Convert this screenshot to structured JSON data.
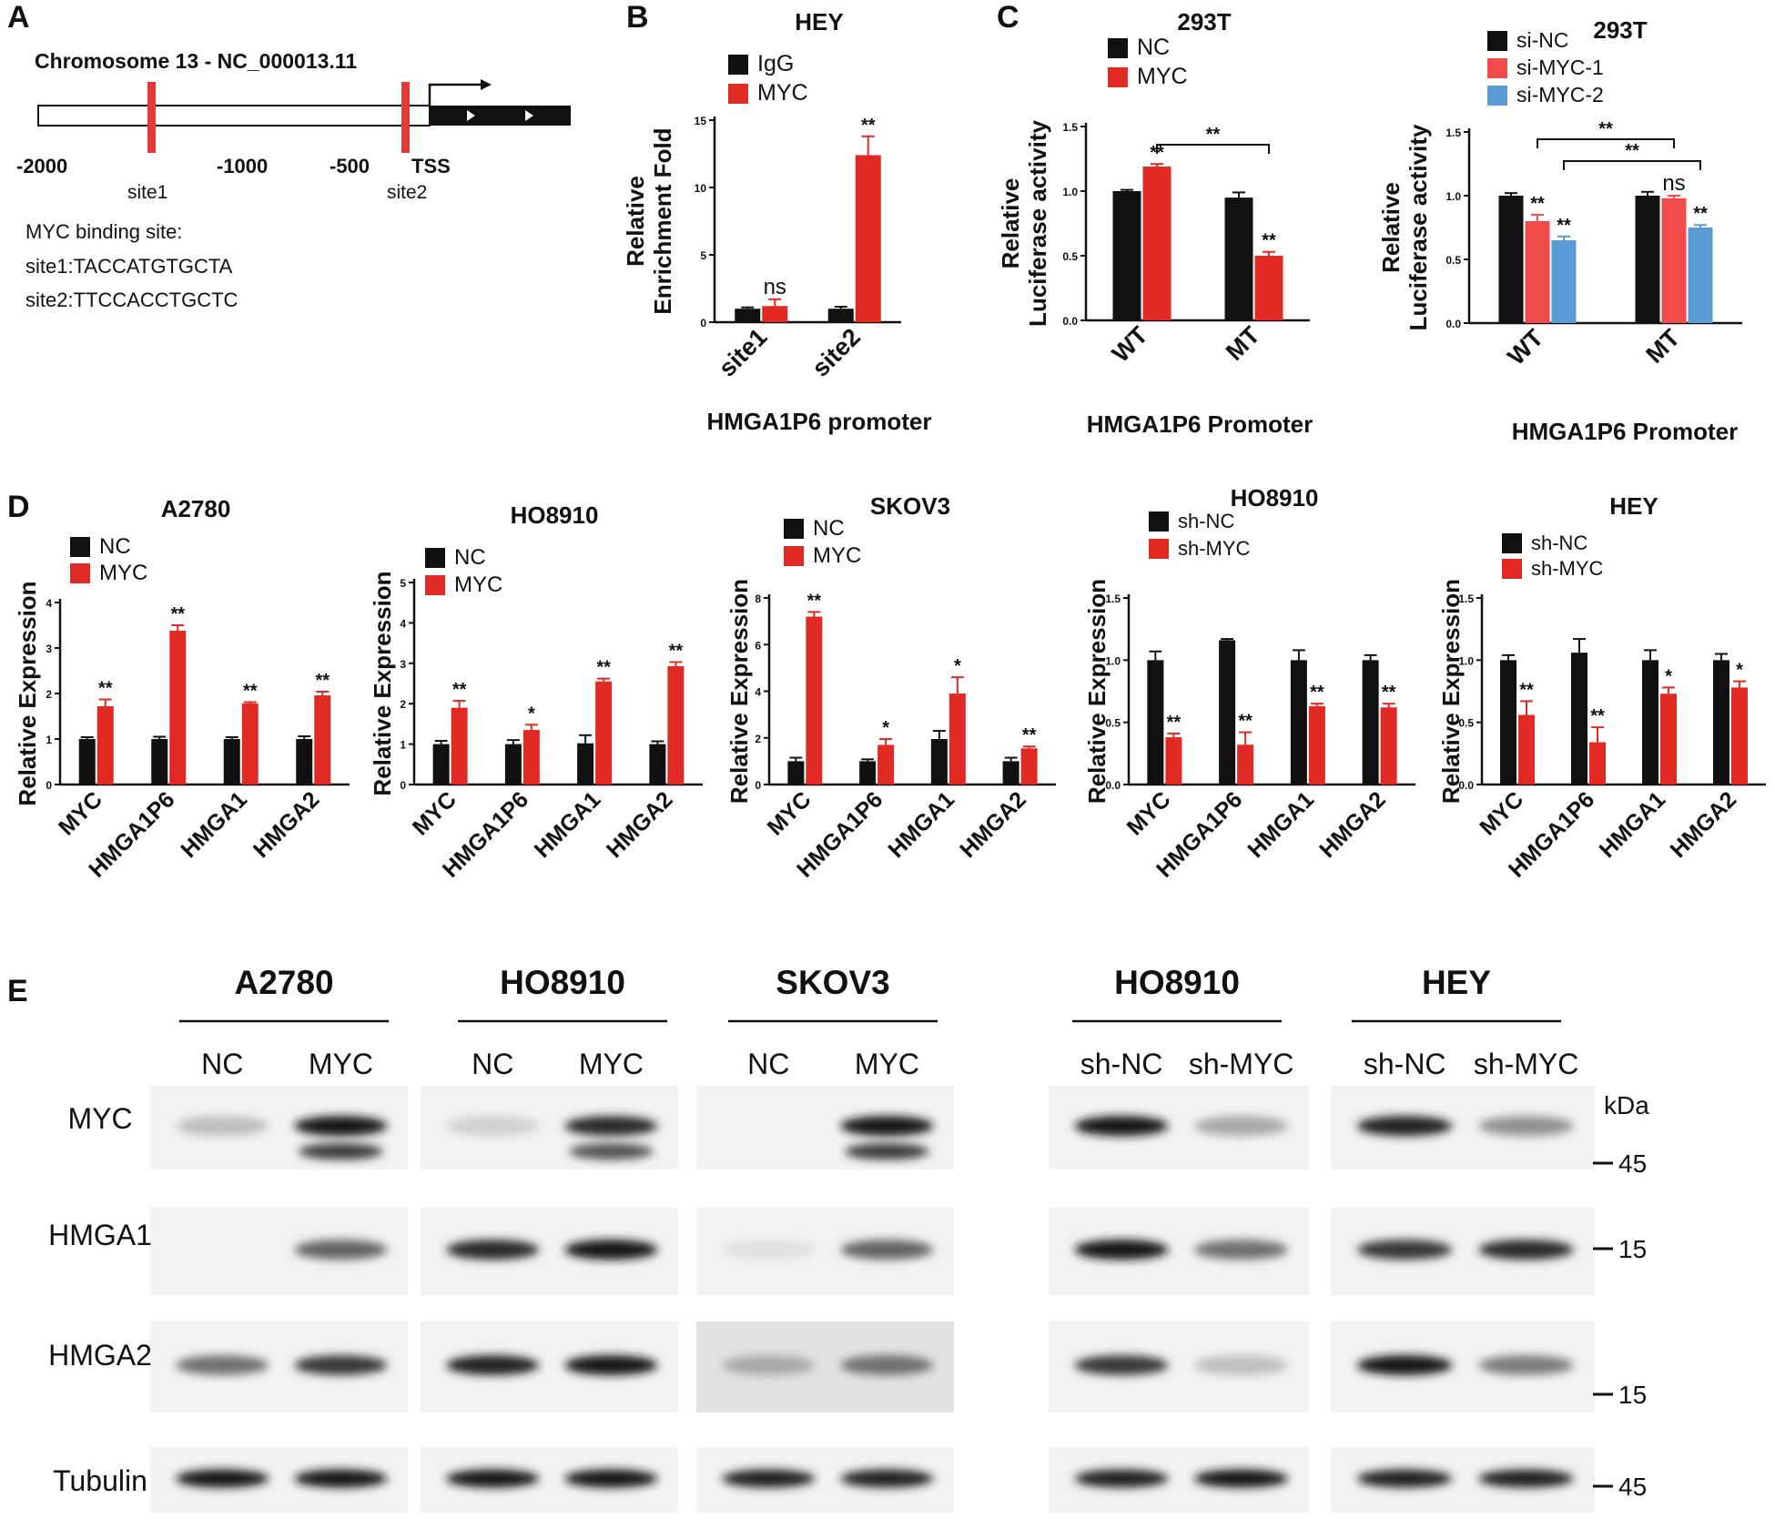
{
  "panels": {
    "A": {
      "label": "A",
      "chromosome": "Chromosome 13 - NC_000013.11",
      "positions": [
        "-2000",
        "-1000",
        "-500",
        "TSS"
      ],
      "sites": [
        "site1",
        "site2"
      ],
      "binding_title": "MYC binding site:",
      "site1_seq": "site1:TACCATGTGCTA",
      "site2_seq": "site2:TTCCACCTGCTC",
      "site_color": "#e53935"
    },
    "B": {
      "label": "B"
    },
    "C": {
      "label": "C"
    },
    "D": {
      "label": "D"
    },
    "E": {
      "label": "E"
    }
  },
  "colors": {
    "black": "#111111",
    "red": "#e22a24",
    "salmon": "#ef4c4a",
    "blue": "#5b9bd5"
  },
  "chart_data": [
    {
      "id": "B",
      "type": "bar",
      "title": "HEY",
      "ylabel": [
        "Relative",
        "Enrichment Fold"
      ],
      "xlabel": "HMGA1P6 promoter",
      "ylim": [
        0,
        15
      ],
      "yticks": [
        "0",
        "5",
        "10",
        "15"
      ],
      "categories": [
        "site1",
        "site2"
      ],
      "series": [
        {
          "name": "IgG",
          "color": "#111111",
          "values": [
            1.0,
            1.0
          ],
          "errors": [
            0.1,
            0.15
          ]
        },
        {
          "name": "MYC",
          "color": "#e22a24",
          "values": [
            1.2,
            12.4
          ],
          "errors": [
            0.5,
            1.4
          ]
        }
      ],
      "annotations": [
        [
          "",
          ""
        ],
        [
          "ns",
          "**"
        ]
      ]
    },
    {
      "id": "C1",
      "type": "bar",
      "title": "293T",
      "ylabel": [
        "Relative",
        "Luciferase activity"
      ],
      "xlabel": "HMGA1P6 Promoter",
      "ylim": [
        0,
        1.5
      ],
      "yticks": [
        "0.0",
        "0.5",
        "1.0",
        "1.5"
      ],
      "categories": [
        "WT",
        "MT"
      ],
      "series": [
        {
          "name": "NC",
          "color": "#111111",
          "values": [
            1.0,
            0.95
          ],
          "errors": [
            0.01,
            0.04
          ]
        },
        {
          "name": "MYC",
          "color": "#e22a24",
          "values": [
            1.19,
            0.5
          ],
          "errors": [
            0.02,
            0.03
          ]
        }
      ],
      "annotations": [
        [
          "",
          ""
        ],
        [
          "**",
          "**"
        ]
      ],
      "brackets": [
        {
          "text": "**",
          "from": [
            0,
            1
          ],
          "to": [
            1,
            1
          ]
        }
      ]
    },
    {
      "id": "C2",
      "type": "bar",
      "title": "293T",
      "ylabel": [
        "Relative",
        "Luciferase activity"
      ],
      "xlabel": "HMGA1P6 Promoter",
      "ylim": [
        0,
        1.5
      ],
      "yticks": [
        "0.0",
        "0.5",
        "1.0",
        "1.5"
      ],
      "categories": [
        "WT",
        "MT"
      ],
      "series": [
        {
          "name": "si-NC",
          "color": "#111111",
          "values": [
            1.0,
            1.0
          ],
          "errors": [
            0.02,
            0.03
          ]
        },
        {
          "name": "si-MYC-1",
          "color": "#ef4c4a",
          "values": [
            0.8,
            0.98
          ],
          "errors": [
            0.05,
            0.02
          ]
        },
        {
          "name": "si-MYC-2",
          "color": "#5b9bd5",
          "values": [
            0.65,
            0.75
          ],
          "errors": [
            0.03,
            0.02
          ]
        }
      ],
      "annotations": [
        [
          "",
          ""
        ],
        [
          "**",
          "ns"
        ],
        [
          "**",
          "**"
        ]
      ],
      "brackets": [
        {
          "text": "**",
          "from": [
            0,
            1
          ],
          "to": [
            1,
            1
          ]
        },
        {
          "text": "**",
          "from": [
            0,
            2
          ],
          "to": [
            1,
            2
          ]
        }
      ]
    },
    {
      "id": "D1",
      "type": "bar",
      "title": "A2780",
      "ylabel": [
        "Relative Expression"
      ],
      "ylim": [
        0,
        4
      ],
      "yticks": [
        "0",
        "1",
        "2",
        "3",
        "4"
      ],
      "categories": [
        "MYC",
        "HMGA1P6",
        "HMGA1",
        "HMGA2"
      ],
      "series": [
        {
          "name": "NC",
          "color": "#111111",
          "values": [
            1.0,
            1.0,
            1.0,
            1.0
          ],
          "errors": [
            0.04,
            0.05,
            0.04,
            0.06
          ]
        },
        {
          "name": "MYC",
          "color": "#e22a24",
          "values": [
            1.72,
            3.38,
            1.78,
            1.96
          ],
          "errors": [
            0.15,
            0.12,
            0.03,
            0.08
          ]
        }
      ],
      "annotations": [
        [
          "",
          "",
          "",
          ""
        ],
        [
          "**",
          "**",
          "**",
          "**"
        ]
      ]
    },
    {
      "id": "D2",
      "type": "bar",
      "title": "HO8910",
      "ylabel": [
        "Relative Expression"
      ],
      "ylim": [
        0,
        5
      ],
      "yticks": [
        "0",
        "1",
        "2",
        "3",
        "4",
        "5"
      ],
      "categories": [
        "MYC",
        "HMGA1P6",
        "HMGA1",
        "HMGA2"
      ],
      "series": [
        {
          "name": "NC",
          "color": "#111111",
          "values": [
            1.0,
            1.0,
            1.02,
            1.0
          ],
          "errors": [
            0.08,
            0.1,
            0.2,
            0.07
          ]
        },
        {
          "name": "MYC",
          "color": "#e22a24",
          "values": [
            1.9,
            1.35,
            2.55,
            2.93
          ],
          "errors": [
            0.17,
            0.13,
            0.07,
            0.1
          ]
        }
      ],
      "annotations": [
        [
          "",
          "",
          "",
          ""
        ],
        [
          "**",
          "*",
          "**",
          "**"
        ]
      ]
    },
    {
      "id": "D3",
      "type": "bar",
      "title": "SKOV3",
      "ylabel": [
        "Relative Expression"
      ],
      "ylim": [
        0,
        8
      ],
      "yticks": [
        "0",
        "2",
        "4",
        "6",
        "8"
      ],
      "categories": [
        "MYC",
        "HMGA1P6",
        "HMGA1",
        "HMGA2"
      ],
      "series": [
        {
          "name": "NC",
          "color": "#111111",
          "values": [
            1.0,
            1.0,
            1.95,
            1.0
          ],
          "errors": [
            0.15,
            0.08,
            0.35,
            0.15
          ]
        },
        {
          "name": "MYC",
          "color": "#e22a24",
          "values": [
            7.2,
            1.7,
            3.9,
            1.55
          ],
          "errors": [
            0.2,
            0.25,
            0.7,
            0.08
          ]
        }
      ],
      "annotations": [
        [
          "",
          "",
          "",
          ""
        ],
        [
          "**",
          "*",
          "*",
          "**"
        ]
      ]
    },
    {
      "id": "D4",
      "type": "bar",
      "title": "HO8910",
      "ylabel": [
        "Relative Expression"
      ],
      "ylim": [
        0,
        1.5
      ],
      "yticks": [
        "0.0",
        "0.5",
        "1.0",
        "1.5"
      ],
      "categories": [
        "MYC",
        "HMGA1P6",
        "HMGA1",
        "HMGA2"
      ],
      "series": [
        {
          "name": "sh-NC",
          "color": "#111111",
          "values": [
            1.0,
            1.16,
            1.0,
            1.0
          ],
          "errors": [
            0.07,
            0.01,
            0.08,
            0.04
          ]
        },
        {
          "name": "sh-MYC",
          "color": "#e22a24",
          "values": [
            0.38,
            0.32,
            0.63,
            0.62
          ],
          "errors": [
            0.03,
            0.1,
            0.02,
            0.03
          ]
        }
      ],
      "annotations": [
        [
          "",
          "",
          "",
          ""
        ],
        [
          "**",
          "**",
          "**",
          "**"
        ]
      ]
    },
    {
      "id": "D5",
      "type": "bar",
      "title": "HEY",
      "ylabel": [
        "Relative Expression"
      ],
      "ylim": [
        0,
        1.5
      ],
      "yticks": [
        "0.0",
        "0.5",
        "1.0",
        "1.5"
      ],
      "categories": [
        "MYC",
        "HMGA1P6",
        "HMGA1",
        "HMGA2"
      ],
      "series": [
        {
          "name": "sh-NC",
          "color": "#111111",
          "values": [
            1.0,
            1.06,
            1.0,
            1.0
          ],
          "errors": [
            0.04,
            0.11,
            0.08,
            0.05
          ]
        },
        {
          "name": "sh-MYC",
          "color": "#e22a24",
          "values": [
            0.56,
            0.34,
            0.73,
            0.78
          ],
          "errors": [
            0.11,
            0.12,
            0.05,
            0.05
          ]
        }
      ],
      "annotations": [
        [
          "",
          "",
          "",
          ""
        ],
        [
          "**",
          "**",
          "*",
          "*"
        ]
      ]
    }
  ],
  "westerns": {
    "groups": [
      {
        "title": "A2780",
        "lanes": [
          "NC",
          "MYC"
        ]
      },
      {
        "title": "HO8910",
        "lanes": [
          "NC",
          "MYC"
        ]
      },
      {
        "title": "SKOV3",
        "lanes": [
          "NC",
          "MYC"
        ]
      },
      {
        "title": "HO8910",
        "lanes": [
          "sh-NC",
          "sh-MYC"
        ]
      },
      {
        "title": "HEY",
        "lanes": [
          "sh-NC",
          "sh-MYC"
        ]
      }
    ],
    "rows": [
      "MYC",
      "HMGA1",
      "HMGA2",
      "Tubulin"
    ],
    "kda_label": "kDa",
    "markers": [
      "45",
      "15",
      "15",
      "45"
    ],
    "band_intensities": {
      "MYC": [
        [
          0.2,
          0.95
        ],
        [
          0.12,
          0.85
        ],
        [
          0.0,
          0.95
        ],
        [
          0.95,
          0.3
        ],
        [
          0.9,
          0.4
        ]
      ],
      "HMGA1": [
        [
          0.0,
          0.6
        ],
        [
          0.85,
          0.95
        ],
        [
          0.05,
          0.6
        ],
        [
          0.95,
          0.55
        ],
        [
          0.8,
          0.85
        ]
      ],
      "HMGA2": [
        [
          0.55,
          0.8
        ],
        [
          0.9,
          0.95
        ],
        [
          0.3,
          0.55
        ],
        [
          0.8,
          0.2
        ],
        [
          0.95,
          0.5
        ]
      ],
      "Tubulin": [
        [
          0.95,
          0.95
        ],
        [
          0.95,
          0.95
        ],
        [
          0.9,
          0.9
        ],
        [
          0.9,
          0.95
        ],
        [
          0.9,
          0.9
        ]
      ]
    }
  }
}
